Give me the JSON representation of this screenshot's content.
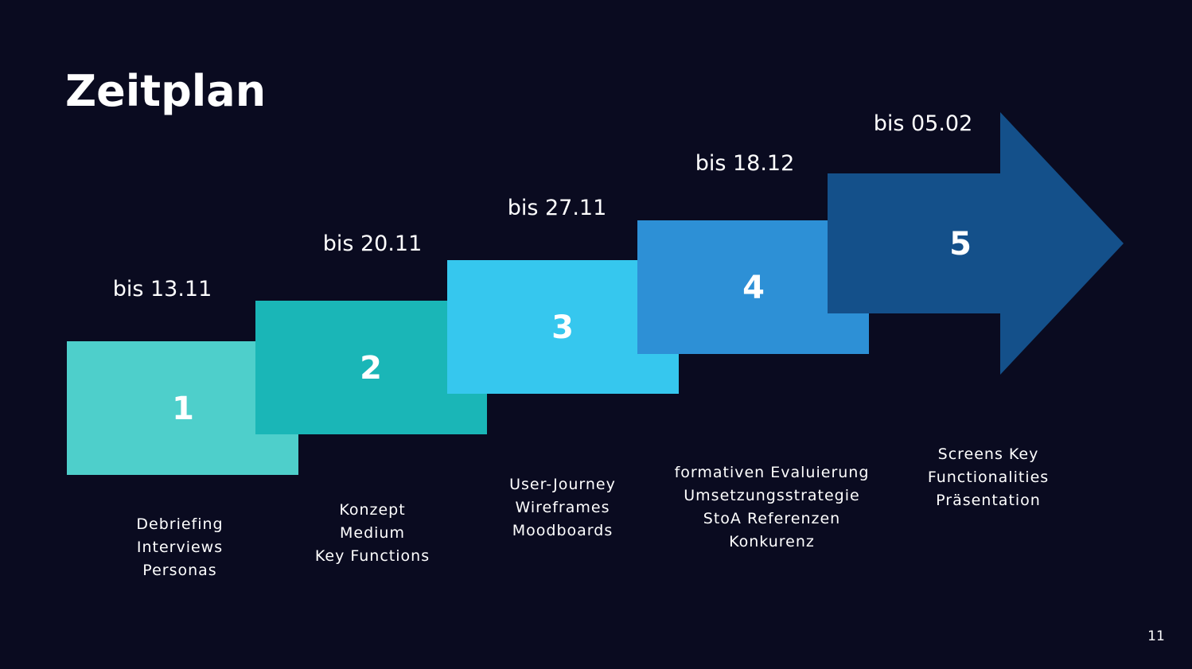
{
  "title": "Zeitplan",
  "steps": [
    {
      "number": "1",
      "date": "bis 13.11",
      "lines": [
        "Debriefing",
        "Interviews",
        "Personas"
      ]
    },
    {
      "number": "2",
      "date": "bis 20.11",
      "lines": [
        "Konzept",
        "Medium",
        "Key Functions"
      ]
    },
    {
      "number": "3",
      "date": "bis 27.11",
      "lines": [
        "User-Journey",
        "Wireframes",
        "Moodboards"
      ]
    },
    {
      "number": "4",
      "date": "bis 18.12",
      "lines": [
        "formativen Evaluierung",
        "Umsetzungsstrategie",
        "StoA Referenzen",
        "Konkurenz"
      ]
    },
    {
      "number": "5",
      "date": "bis 05.02",
      "lines": [
        "Screens Key",
        "Functionalities",
        "Präsentation"
      ]
    }
  ],
  "page_number": "11"
}
